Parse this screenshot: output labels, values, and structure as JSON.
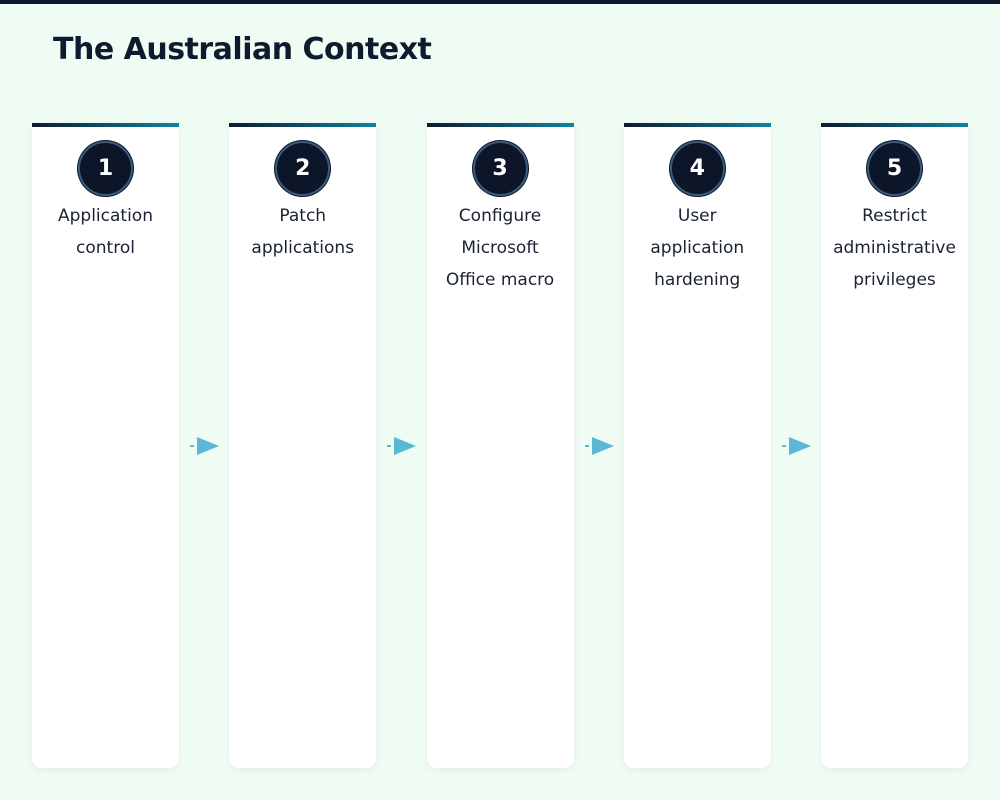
{
  "header": {
    "title": "The Australian Context"
  },
  "steps": [
    {
      "number": 1,
      "label": "Application control"
    },
    {
      "number": 2,
      "label": "Patch applications"
    },
    {
      "number": 3,
      "label": "Configure Microsoft Office macro"
    },
    {
      "number": 4,
      "label": "User application hardening"
    },
    {
      "number": 5,
      "label": "Restrict administrative privileges"
    }
  ]
}
